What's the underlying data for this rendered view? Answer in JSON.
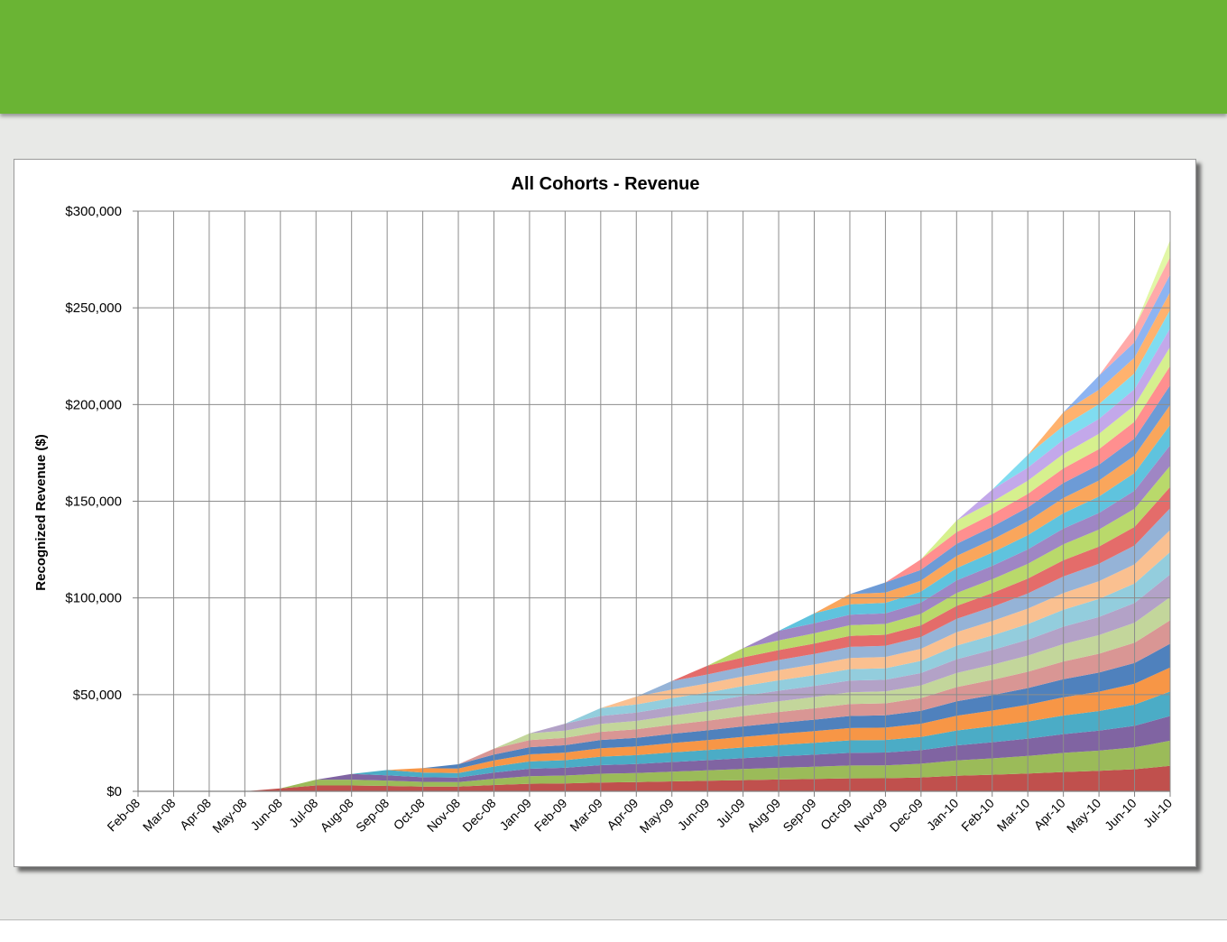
{
  "chart_data": {
    "type": "area",
    "stacked": true,
    "title": "All Cohorts - Revenue",
    "xlabel": "",
    "ylabel": "Recognized Revenue ($)",
    "ylim": [
      0,
      300000
    ],
    "y_ticks": [
      0,
      50000,
      100000,
      150000,
      200000,
      250000,
      300000
    ],
    "y_tick_labels": [
      "$0",
      "$50,000",
      "$100,000",
      "$150,000",
      "$200,000",
      "$250,000",
      "$300,000"
    ],
    "grid": true,
    "legend": "none",
    "categories": [
      "Feb-08",
      "Mar-08",
      "Apr-08",
      "May-08",
      "Jun-08",
      "Jul-08",
      "Aug-08",
      "Sep-08",
      "Oct-08",
      "Nov-08",
      "Dec-08",
      "Jan-09",
      "Feb-09",
      "Mar-09",
      "Apr-09",
      "May-09",
      "Jun-09",
      "Jul-09",
      "Aug-09",
      "Sep-09",
      "Oct-09",
      "Nov-09",
      "Dec-09",
      "Jan-10",
      "Feb-10",
      "Mar-10",
      "Apr-10",
      "May-10",
      "Jun-10",
      "Jul-10"
    ],
    "totals": [
      0,
      0,
      0,
      0,
      1500,
      6000,
      9000,
      11000,
      12000,
      14000,
      22000,
      30000,
      35000,
      43000,
      49000,
      57000,
      65000,
      74000,
      83000,
      92000,
      102000,
      108000,
      120000,
      140000,
      156000,
      174000,
      196000,
      215000,
      240000,
      285000
    ],
    "series_count": 29,
    "series_colors": [
      "#c0504d",
      "#9bbb59",
      "#8064a2",
      "#4bacc6",
      "#f79646",
      "#4f81bd",
      "#d99694",
      "#c3d69b",
      "#b3a2c7",
      "#93cddd",
      "#fac090",
      "#95b3d7",
      "#e46c6a",
      "#b9d96b",
      "#9f86c4",
      "#5fc3de",
      "#f9a65c",
      "#6d9bd6",
      "#ff8f8f",
      "#d6f08e",
      "#c3a8ea",
      "#80dcf0",
      "#ffb26e",
      "#8db4f2",
      "#ffaaaa",
      "#e2f7a6",
      "#d2c0ee",
      "#a6ebf7",
      "#ffc79c"
    ]
  }
}
